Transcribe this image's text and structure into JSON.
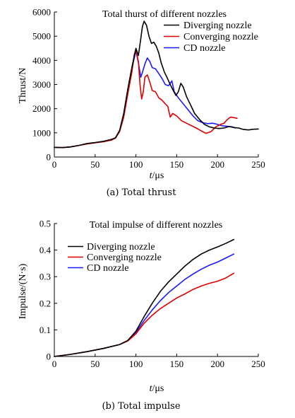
{
  "chart_data": [
    {
      "type": "line",
      "title": "Total thurst of different nozzles",
      "xlabel_italic": "t",
      "xlabel_rest": "/μs",
      "ylabel": "Thrust/N",
      "xlim": [
        0,
        250
      ],
      "ylim": [
        0,
        6000
      ],
      "xticks": [
        "0",
        "50",
        "100",
        "150",
        "200",
        "250"
      ],
      "yticks": [
        "0",
        "1000",
        "2000",
        "3000",
        "4000",
        "5000",
        "6000"
      ],
      "legend_placement": "top-right",
      "caption": "(a) Total thrust",
      "series": [
        {
          "name": "Diverging nozzle",
          "color": "#000000",
          "points": [
            [
              0,
              400
            ],
            [
              10,
              390
            ],
            [
              20,
              420
            ],
            [
              30,
              480
            ],
            [
              40,
              560
            ],
            [
              50,
              600
            ],
            [
              60,
              650
            ],
            [
              70,
              730
            ],
            [
              75,
              800
            ],
            [
              80,
              1100
            ],
            [
              85,
              1800
            ],
            [
              90,
              2800
            ],
            [
              95,
              3700
            ],
            [
              100,
              4500
            ],
            [
              103,
              4200
            ],
            [
              106,
              4900
            ],
            [
              108,
              5400
            ],
            [
              110,
              5620
            ],
            [
              113,
              5450
            ],
            [
              116,
              5000
            ],
            [
              119,
              4700
            ],
            [
              122,
              4750
            ],
            [
              125,
              4580
            ],
            [
              128,
              4300
            ],
            [
              131,
              3900
            ],
            [
              135,
              3500
            ],
            [
              138,
              3300
            ],
            [
              142,
              3000
            ],
            [
              145,
              2800
            ],
            [
              149,
              2550
            ],
            [
              152,
              2700
            ],
            [
              155,
              3050
            ],
            [
              158,
              2900
            ],
            [
              162,
              2500
            ],
            [
              167,
              2150
            ],
            [
              172,
              1800
            ],
            [
              178,
              1550
            ],
            [
              184,
              1350
            ],
            [
              190,
              1250
            ],
            [
              196,
              1200
            ],
            [
              202,
              1180
            ],
            [
              208,
              1200
            ],
            [
              214,
              1260
            ],
            [
              220,
              1220
            ],
            [
              226,
              1200
            ],
            [
              232,
              1140
            ],
            [
              238,
              1120
            ],
            [
              244,
              1150
            ],
            [
              250,
              1160
            ]
          ]
        },
        {
          "name": "Converging nozzle",
          "color": "#e00000",
          "points": [
            [
              0,
              400
            ],
            [
              10,
              390
            ],
            [
              20,
              420
            ],
            [
              30,
              480
            ],
            [
              40,
              540
            ],
            [
              50,
              590
            ],
            [
              60,
              630
            ],
            [
              70,
              700
            ],
            [
              75,
              780
            ],
            [
              80,
              1050
            ],
            [
              85,
              1650
            ],
            [
              90,
              2600
            ],
            [
              95,
              3500
            ],
            [
              98,
              4250
            ],
            [
              100,
              4450
            ],
            [
              103,
              3950
            ],
            [
              105,
              3000
            ],
            [
              107,
              2400
            ],
            [
              109,
              2700
            ],
            [
              111,
              3300
            ],
            [
              114,
              3400
            ],
            [
              117,
              3100
            ],
            [
              120,
              2750
            ],
            [
              124,
              2700
            ],
            [
              128,
              2450
            ],
            [
              132,
              2350
            ],
            [
              136,
              2200
            ],
            [
              139,
              2100
            ],
            [
              142,
              1650
            ],
            [
              145,
              1800
            ],
            [
              150,
              1700
            ],
            [
              156,
              1500
            ],
            [
              162,
              1400
            ],
            [
              168,
              1300
            ],
            [
              174,
              1200
            ],
            [
              180,
              1080
            ],
            [
              186,
              980
            ],
            [
              192,
              1050
            ],
            [
              198,
              1250
            ],
            [
              204,
              1350
            ],
            [
              208,
              1400
            ],
            [
              212,
              1550
            ],
            [
              216,
              1650
            ],
            [
              220,
              1630
            ],
            [
              224,
              1600
            ]
          ]
        },
        {
          "name": "CD nozzle",
          "color": "#1a1aff",
          "points": [
            [
              0,
              400
            ],
            [
              10,
              390
            ],
            [
              20,
              420
            ],
            [
              30,
              480
            ],
            [
              40,
              550
            ],
            [
              50,
              590
            ],
            [
              60,
              640
            ],
            [
              70,
              720
            ],
            [
              75,
              790
            ],
            [
              80,
              1080
            ],
            [
              85,
              1750
            ],
            [
              90,
              2700
            ],
            [
              95,
              3650
            ],
            [
              100,
              4400
            ],
            [
              103,
              3900
            ],
            [
              106,
              3300
            ],
            [
              108,
              3500
            ],
            [
              111,
              3850
            ],
            [
              114,
              4100
            ],
            [
              117,
              3950
            ],
            [
              120,
              3700
            ],
            [
              124,
              3650
            ],
            [
              128,
              3450
            ],
            [
              132,
              3250
            ],
            [
              136,
              3000
            ],
            [
              140,
              2950
            ],
            [
              144,
              3150
            ],
            [
              147,
              2700
            ],
            [
              152,
              2450
            ],
            [
              158,
              2200
            ],
            [
              164,
              1950
            ],
            [
              170,
              1700
            ],
            [
              176,
              1500
            ],
            [
              182,
              1420
            ],
            [
              188,
              1380
            ],
            [
              194,
              1400
            ],
            [
              200,
              1350
            ],
            [
              206,
              1290
            ],
            [
              212,
              1270
            ],
            [
              218,
              1250
            ],
            [
              222,
              1200
            ]
          ]
        }
      ]
    },
    {
      "type": "line",
      "title": "Total impulse of different nozzles",
      "xlabel_italic": "t",
      "xlabel_rest": "/μs",
      "ylabel": "Impulse/(N·s)",
      "xlim": [
        0,
        250
      ],
      "ylim": [
        0,
        0.5
      ],
      "xticks": [
        "0",
        "50",
        "100",
        "150",
        "200",
        "250"
      ],
      "yticks": [
        "0",
        "0.1",
        "0.2",
        "0.3",
        "0.4",
        "0.5"
      ],
      "legend_placement": "top-left",
      "caption": "(b) Total impulse",
      "series": [
        {
          "name": "Diverging nozzle",
          "color": "#000000",
          "points": [
            [
              0,
              0
            ],
            [
              20,
              0.008
            ],
            [
              40,
              0.018
            ],
            [
              60,
              0.03
            ],
            [
              80,
              0.045
            ],
            [
              90,
              0.06
            ],
            [
              100,
              0.095
            ],
            [
              110,
              0.15
            ],
            [
              120,
              0.2
            ],
            [
              130,
              0.245
            ],
            [
              140,
              0.28
            ],
            [
              150,
              0.31
            ],
            [
              160,
              0.34
            ],
            [
              170,
              0.365
            ],
            [
              180,
              0.385
            ],
            [
              190,
              0.4
            ],
            [
              200,
              0.412
            ],
            [
              210,
              0.425
            ],
            [
              220,
              0.44
            ]
          ]
        },
        {
          "name": "Converging nozzle",
          "color": "#e00000",
          "points": [
            [
              0,
              0
            ],
            [
              20,
              0.008
            ],
            [
              40,
              0.018
            ],
            [
              60,
              0.03
            ],
            [
              80,
              0.045
            ],
            [
              90,
              0.058
            ],
            [
              100,
              0.085
            ],
            [
              110,
              0.125
            ],
            [
              120,
              0.155
            ],
            [
              130,
              0.18
            ],
            [
              140,
              0.2
            ],
            [
              150,
              0.22
            ],
            [
              160,
              0.235
            ],
            [
              170,
              0.252
            ],
            [
              180,
              0.265
            ],
            [
              190,
              0.275
            ],
            [
              200,
              0.283
            ],
            [
              210,
              0.295
            ],
            [
              220,
              0.313
            ]
          ]
        },
        {
          "name": "CD nozzle",
          "color": "#1a1aff",
          "points": [
            [
              0,
              0
            ],
            [
              20,
              0.008
            ],
            [
              40,
              0.018
            ],
            [
              60,
              0.03
            ],
            [
              80,
              0.045
            ],
            [
              90,
              0.059
            ],
            [
              100,
              0.09
            ],
            [
              110,
              0.135
            ],
            [
              120,
              0.175
            ],
            [
              130,
              0.21
            ],
            [
              140,
              0.24
            ],
            [
              150,
              0.265
            ],
            [
              160,
              0.29
            ],
            [
              170,
              0.31
            ],
            [
              180,
              0.328
            ],
            [
              190,
              0.343
            ],
            [
              200,
              0.355
            ],
            [
              210,
              0.37
            ],
            [
              220,
              0.385
            ]
          ]
        }
      ]
    }
  ]
}
